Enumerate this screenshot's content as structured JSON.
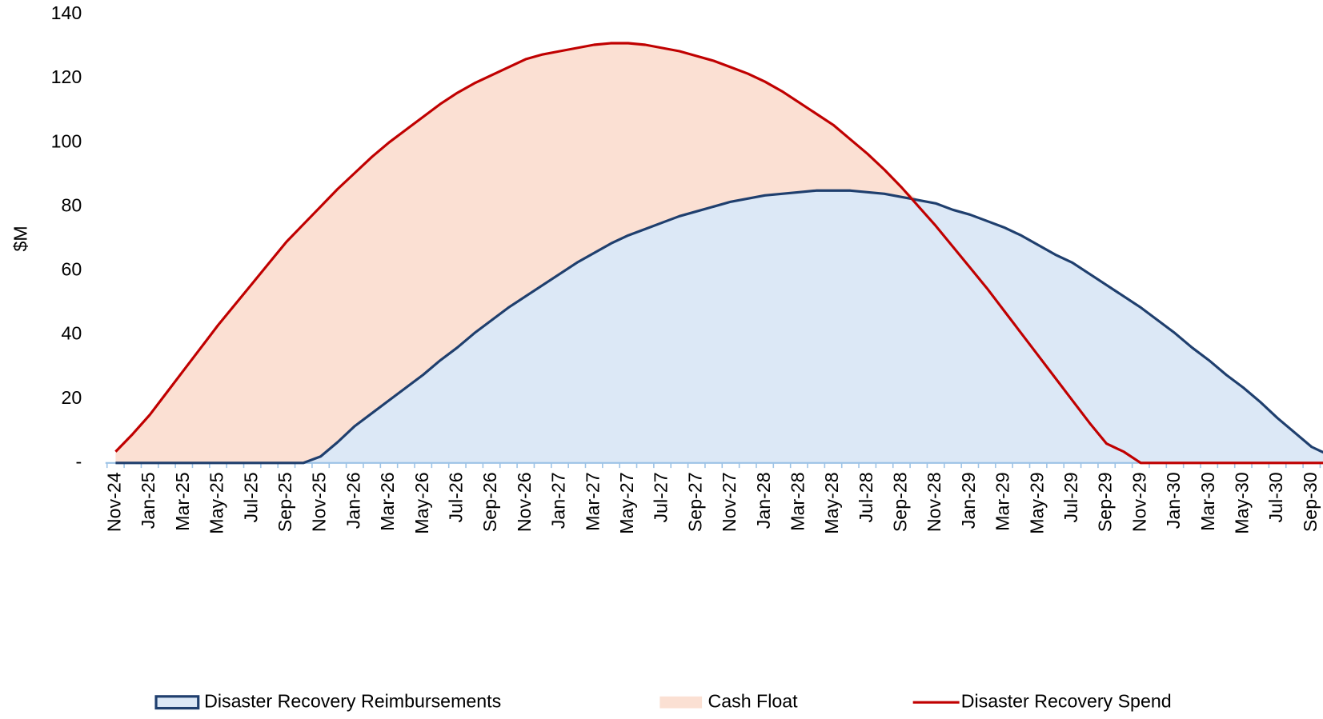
{
  "chart_data": {
    "type": "area_line",
    "y_label": "$M",
    "categories": [
      "Nov-24",
      null,
      "Jan-25",
      null,
      "Mar-25",
      null,
      "May-25",
      null,
      "Jul-25",
      null,
      "Sep-25",
      null,
      "Nov-25",
      null,
      "Jan-26",
      null,
      "Mar-26",
      null,
      "May-26",
      null,
      "Jul-26",
      null,
      "Sep-26",
      null,
      "Nov-26",
      null,
      "Jan-27",
      null,
      "Mar-27",
      null,
      "May-27",
      null,
      "Jul-27",
      null,
      "Sep-27",
      null,
      "Nov-27",
      null,
      "Jan-28",
      null,
      "Mar-28",
      null,
      "May-28",
      null,
      "Jul-28",
      null,
      "Sep-28",
      null,
      "Nov-28",
      null,
      "Jan-29",
      null,
      "Mar-29",
      null,
      "May-29",
      null,
      "Jul-29",
      null,
      "Sep-29",
      null,
      "Nov-29",
      null,
      "Jan-30",
      null,
      "Mar-30",
      null,
      "May-30",
      null,
      "Jul-30",
      null,
      "Sep-30",
      null
    ],
    "series": [
      {
        "name": "Disaster Recovery Reimbursements",
        "type": "area",
        "stack": true,
        "color": "#dce8f6",
        "line_color": "#1f3f6e",
        "values": [
          0,
          0,
          0,
          0,
          0,
          0,
          0,
          0,
          0,
          0,
          0,
          0,
          2,
          6.5,
          11.5,
          15.5,
          19.5,
          23.5,
          27.5,
          32,
          36,
          40.5,
          44.5,
          48.5,
          52,
          55.5,
          59,
          62.5,
          65.5,
          68.5,
          71,
          73,
          75,
          77,
          78.5,
          80,
          81.5,
          82.5,
          83.5,
          84,
          84.5,
          85,
          85,
          85,
          84.5,
          84,
          83,
          82,
          81,
          79,
          77.5,
          75.5,
          73.5,
          71,
          68,
          65,
          62.5,
          59,
          55.5,
          52,
          48.5,
          44.5,
          40.5,
          36,
          32,
          27.5,
          23.5,
          19,
          14,
          9.5,
          5,
          2.5
        ]
      },
      {
        "name": "Cash Float",
        "type": "area",
        "stack": true,
        "color": "#fbe0d3",
        "values": [
          3.5,
          9,
          15,
          22,
          29,
          36,
          43,
          49.5,
          56,
          62.5,
          69,
          74.5,
          78,
          79,
          79,
          80,
          80.5,
          80.5,
          80.5,
          80,
          79.5,
          78,
          76.5,
          75,
          74,
          72,
          69.5,
          67,
          65,
          62.5,
          60,
          57.5,
          54.5,
          51.5,
          48.5,
          45.5,
          42,
          39,
          35.5,
          32,
          28,
          24,
          20.5,
          16,
          12,
          7.5,
          3,
          0,
          0,
          0,
          0,
          0,
          0,
          0,
          0,
          0,
          0,
          0,
          0,
          0,
          0,
          0,
          0,
          0,
          0,
          0,
          0,
          0,
          0,
          0,
          0,
          0
        ]
      },
      {
        "name": "Disaster Recovery Spend",
        "type": "line",
        "color": "#c00000",
        "values": [
          3.5,
          9,
          15,
          22,
          29,
          36,
          43,
          49.5,
          56,
          62.5,
          69,
          74.5,
          80,
          85.5,
          90.5,
          95.5,
          100,
          104,
          108,
          112,
          115.5,
          118.5,
          121,
          123.5,
          126,
          127.5,
          128.5,
          129.5,
          130.5,
          131,
          131,
          130.5,
          129.5,
          128.5,
          127,
          125.5,
          123.5,
          121.5,
          119,
          116,
          112.5,
          109,
          105.5,
          101,
          96.5,
          91.5,
          86,
          80,
          74,
          67.5,
          61,
          54.5,
          47.5,
          40.5,
          33.5,
          26.5,
          19.5,
          12.5,
          6,
          3.5,
          0,
          0,
          0,
          0,
          0,
          0,
          0,
          0,
          0,
          0,
          0,
          0
        ]
      }
    ],
    "ylim": [
      0,
      140
    ],
    "yticks": [
      {
        "value": 0,
        "label": "-"
      },
      20,
      40,
      60,
      80,
      100,
      120,
      140
    ],
    "grid": false,
    "legend": "bottom"
  }
}
